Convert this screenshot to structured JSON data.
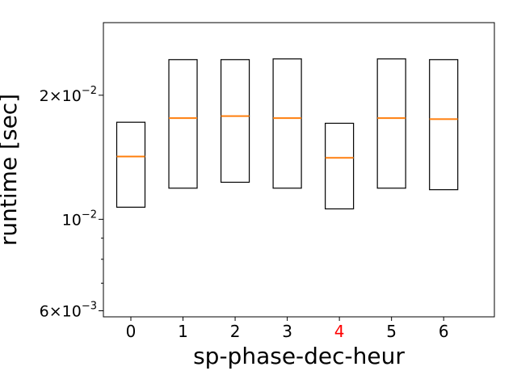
{
  "chart_data": {
    "type": "box",
    "xlabel": "sp-phase-dec-heur",
    "ylabel": "runtime [sec]",
    "yscale": "log",
    "ylim": [
      0.0058,
      0.03
    ],
    "grid": false,
    "categories": [
      "0",
      "1",
      "2",
      "3",
      "4",
      "5",
      "6"
    ],
    "highlighted_category": "4",
    "highlight_color": "#ff0000",
    "box_color": "#000000",
    "median_color": "#ff7f0e",
    "boxes": [
      {
        "q1": 0.0107,
        "median": 0.0142,
        "q3": 0.0172
      },
      {
        "q1": 0.0119,
        "median": 0.0176,
        "q3": 0.0244
      },
      {
        "q1": 0.0123,
        "median": 0.0178,
        "q3": 0.0244
      },
      {
        "q1": 0.0119,
        "median": 0.0176,
        "q3": 0.0245
      },
      {
        "q1": 0.0106,
        "median": 0.0141,
        "q3": 0.0171
      },
      {
        "q1": 0.0119,
        "median": 0.0176,
        "q3": 0.0245
      },
      {
        "q1": 0.0118,
        "median": 0.0175,
        "q3": 0.0244
      }
    ],
    "yticks_major": [
      {
        "value": 0.006,
        "mantissa": "6",
        "exponent": "−3"
      },
      {
        "value": 0.01,
        "mantissa": "",
        "exponent": "−2"
      },
      {
        "value": 0.02,
        "mantissa": "2",
        "exponent": "−2"
      }
    ],
    "yticks_minor": [
      0.007,
      0.008,
      0.009
    ]
  }
}
